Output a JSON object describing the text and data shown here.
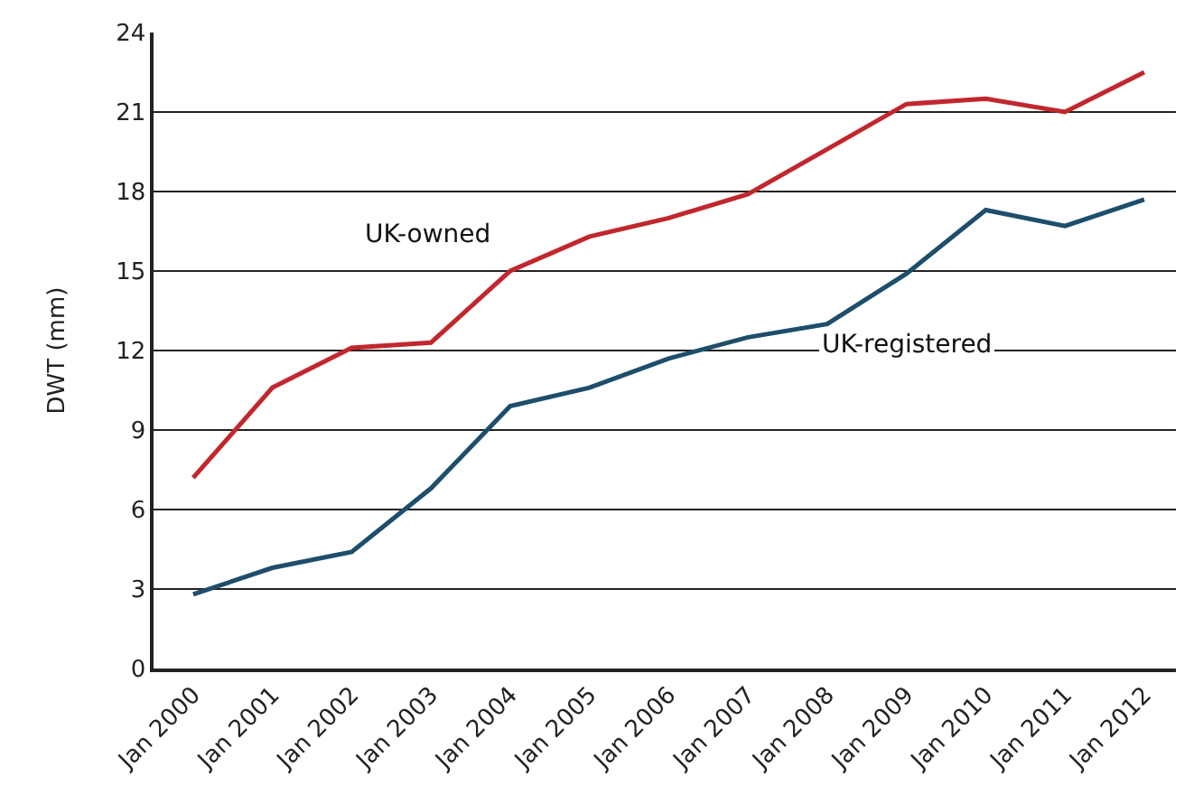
{
  "chart_data": {
    "type": "line",
    "ylabel": "DWT (mm)",
    "categories": [
      "Jan 2000",
      "Jan 2001",
      "Jan 2002",
      "Jan 2003",
      "Jan 2004",
      "Jan 2005",
      "Jan 2006",
      "Jan 2007",
      "Jan 2008",
      "Jan 2009",
      "Jan 2010",
      "Jan 2011",
      "Jan 2012"
    ],
    "series": [
      {
        "name": "UK-owned",
        "color": "#c1272d",
        "values": [
          7.2,
          10.6,
          12.1,
          12.3,
          15.0,
          16.3,
          17.0,
          17.9,
          19.6,
          21.3,
          21.5,
          21.0,
          22.5
        ]
      },
      {
        "name": "UK-registered",
        "color": "#1d4e6b",
        "values": [
          2.8,
          3.8,
          4.4,
          6.8,
          9.9,
          10.6,
          11.7,
          12.5,
          13.0,
          14.9,
          17.3,
          16.7,
          17.7
        ]
      }
    ],
    "ylim": [
      0,
      24
    ],
    "yticks": [
      0,
      3,
      6,
      9,
      12,
      15,
      18,
      21,
      24
    ],
    "grid": "y",
    "legend": false,
    "marker": "none",
    "line_style": "solid"
  }
}
